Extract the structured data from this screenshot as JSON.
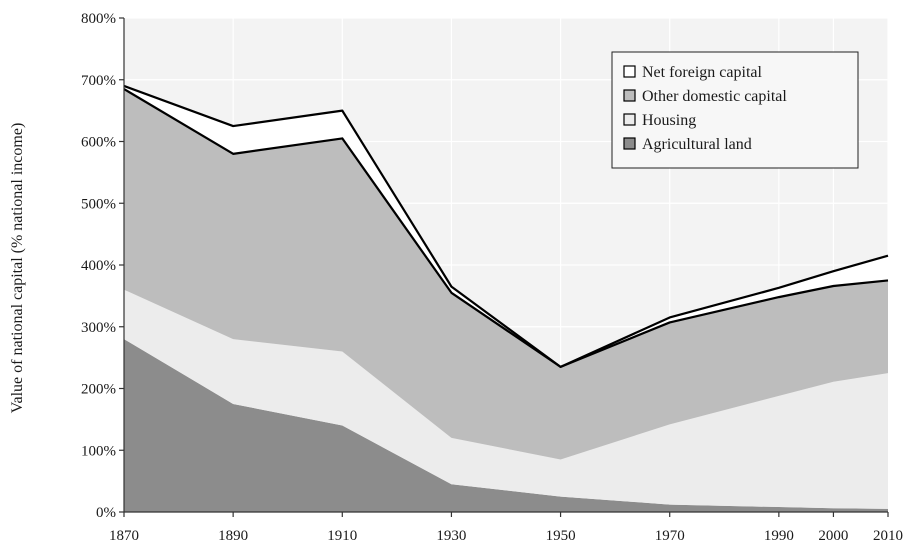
{
  "chart_data": {
    "type": "area",
    "stacked": true,
    "title": "",
    "xlabel": "",
    "ylabel": "Value of national capital (% national income)",
    "x": [
      1870,
      1890,
      1910,
      1930,
      1950,
      1970,
      1990,
      2000,
      2010
    ],
    "x_tick_labels": [
      "1870",
      "1890",
      "1910",
      "1930",
      "1950",
      "1970",
      "1990",
      "2000",
      "2010"
    ],
    "y_tick_values": [
      0,
      100,
      200,
      300,
      400,
      500,
      600,
      700,
      800
    ],
    "y_tick_labels": [
      "0%",
      "100%",
      "200%",
      "300%",
      "400%",
      "500%",
      "600%",
      "700%",
      "800%"
    ],
    "ylim": [
      0,
      800
    ],
    "grid": true,
    "legend_position": "top-right",
    "series": [
      {
        "name": "Agricultural land",
        "values": [
          280,
          175,
          140,
          45,
          25,
          12,
          8,
          6,
          5
        ]
      },
      {
        "name": "Housing",
        "values": [
          80,
          105,
          120,
          75,
          60,
          130,
          180,
          205,
          220
        ]
      },
      {
        "name": "Other domestic capital",
        "values": [
          325,
          300,
          345,
          235,
          150,
          165,
          160,
          155,
          150
        ]
      },
      {
        "name": "Net foreign capital",
        "values": [
          5,
          45,
          45,
          10,
          0,
          8,
          15,
          24,
          40
        ]
      }
    ],
    "legend_order": [
      "Net foreign capital",
      "Other domestic capital",
      "Housing",
      "Agricultural land"
    ],
    "colors": {
      "Agricultural land": "#8c8c8c",
      "Housing": "#ececec",
      "Other domestic capital": "#bdbdbd",
      "Net foreign capital": "#ffffff",
      "background": "#f3f3f3",
      "gridline": "#ffffff",
      "outline": "#000000"
    }
  }
}
